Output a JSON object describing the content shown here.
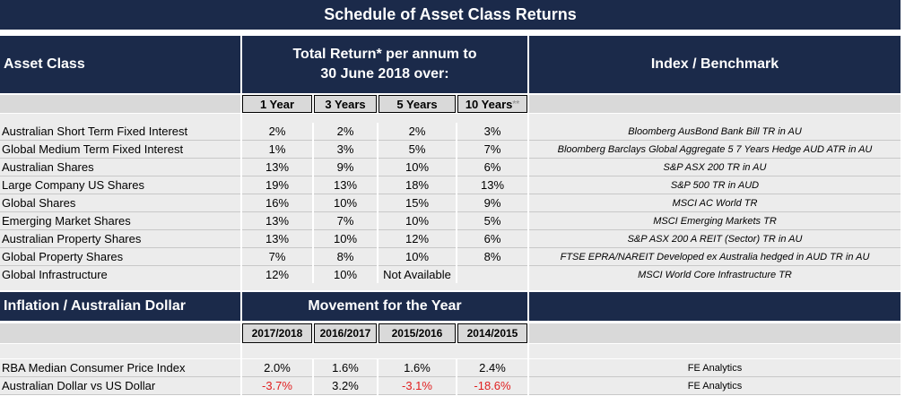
{
  "title": "Schedule of Asset Class Returns",
  "header": {
    "asset_class": "Asset Class",
    "total_return": "Total Return* per annum to\n30 June 2018 over:",
    "index_benchmark": "Index / Benchmark"
  },
  "periods": [
    "1 Year",
    "3 Years",
    "5 Years",
    "10 Years"
  ],
  "periods_marker": "**",
  "assets": [
    {
      "name": "Australian Short Term Fixed Interest",
      "y1": "2%",
      "y3": "2%",
      "y5": "2%",
      "y10": "3%",
      "index": "Bloomberg AusBond Bank Bill TR in AU"
    },
    {
      "name": "Global Medium Term Fixed Interest",
      "y1": "1%",
      "y3": "3%",
      "y5": "5%",
      "y10": "7%",
      "index": "Bloomberg Barclays Global Aggregate 5 7 Years Hedge AUD ATR in AU"
    },
    {
      "name": "Australian Shares",
      "y1": "13%",
      "y3": "9%",
      "y5": "10%",
      "y10": "6%",
      "index": "S&P ASX 200 TR in AU"
    },
    {
      "name": "Large Company US Shares",
      "y1": "19%",
      "y3": "13%",
      "y5": "18%",
      "y10": "13%",
      "index": "S&P 500 TR in AUD"
    },
    {
      "name": "Global Shares",
      "y1": "16%",
      "y3": "10%",
      "y5": "15%",
      "y10": "9%",
      "index": "MSCI AC World TR"
    },
    {
      "name": "Emerging Market Shares",
      "y1": "13%",
      "y3": "7%",
      "y5": "10%",
      "y10": "5%",
      "index": "MSCI Emerging Markets TR"
    },
    {
      "name": "Australian Property Shares",
      "y1": "13%",
      "y3": "10%",
      "y5": "12%",
      "y10": "6%",
      "index": "S&P ASX 200 A REIT (Sector) TR in AU"
    },
    {
      "name": "Global Property Shares",
      "y1": "7%",
      "y3": "8%",
      "y5": "10%",
      "y10": "8%",
      "index": "FTSE EPRA/NAREIT Developed ex Australia hedged in AUD TR in AU"
    },
    {
      "name": "Global Infrastructure",
      "y1": "12%",
      "y3": "10%",
      "y5": "Not Available",
      "y10": "",
      "index": "MSCI World Core Infrastructure TR"
    }
  ],
  "section2": {
    "label": "Inflation  / Australian Dollar",
    "movement": "Movement for the  Year",
    "years": [
      "2017/2018",
      "2016/2017",
      "2015/2016",
      "2014/2015"
    ],
    "rows": [
      {
        "name": "RBA Median Consumer Price Index",
        "v": [
          "2.0%",
          "1.6%",
          "1.6%",
          "2.4%"
        ],
        "source": "FE Analytics"
      },
      {
        "name": "Australian Dollar vs US Dollar",
        "v": [
          "-3.7%",
          "3.2%",
          "-3.1%",
          "-18.6%"
        ],
        "source": "FE Analytics"
      }
    ]
  },
  "colors": {
    "header_bg": "#1b2a4a",
    "row_bg": "#ececec",
    "negative": "#e02020"
  }
}
